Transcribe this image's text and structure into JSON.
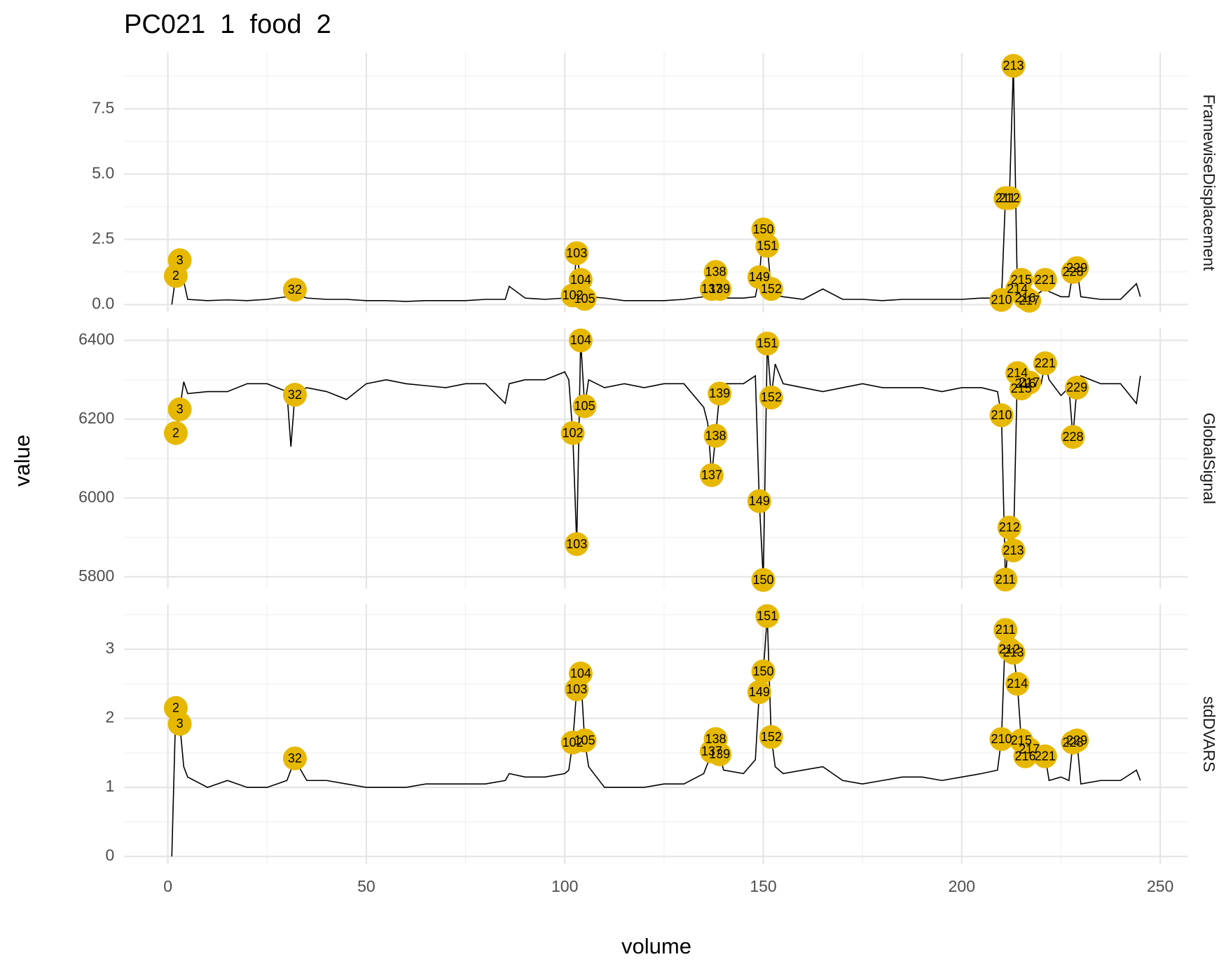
{
  "chart_data": {
    "type": "line",
    "title": "PC021  1  food  2",
    "xlabel": "volume",
    "ylabel": "value",
    "xlim": [
      -11,
      257
    ],
    "xticks": [
      0,
      50,
      100,
      150,
      200,
      250
    ],
    "grid": true,
    "line_color": "#000000",
    "point_color": "#E7B800",
    "x": [
      1,
      2,
      3,
      4,
      5,
      10,
      15,
      20,
      25,
      30,
      31,
      32,
      33,
      35,
      40,
      45,
      50,
      55,
      60,
      65,
      70,
      75,
      80,
      85,
      86,
      90,
      95,
      100,
      101,
      102,
      103,
      104,
      105,
      106,
      110,
      115,
      120,
      125,
      130,
      135,
      136,
      137,
      138,
      139,
      140,
      145,
      148,
      149,
      150,
      151,
      152,
      153,
      155,
      160,
      165,
      170,
      175,
      180,
      185,
      190,
      195,
      200,
      205,
      209,
      210,
      211,
      212,
      213,
      214,
      215,
      216,
      217,
      218,
      220,
      221,
      222,
      225,
      227,
      228,
      229,
      230,
      235,
      240,
      244,
      245
    ],
    "panels": [
      {
        "name": "FramewiseDisplacement",
        "ylim": [
          -0.3,
          9.65
        ],
        "yticks": [
          {
            "value": 0,
            "label": "0.0"
          },
          {
            "value": 2.5,
            "label": "2.5"
          },
          {
            "value": 5,
            "label": "5.0"
          },
          {
            "value": 7.5,
            "label": "7.5"
          }
        ],
        "values": [
          0,
          1.1,
          1.7,
          0.9,
          0.2,
          0.15,
          0.18,
          0.15,
          0.2,
          0.3,
          0.4,
          0.57,
          0.35,
          0.25,
          0.2,
          0.2,
          0.15,
          0.15,
          0.12,
          0.15,
          0.15,
          0.15,
          0.2,
          0.2,
          0.7,
          0.25,
          0.2,
          0.25,
          0.3,
          0.35,
          1.97,
          0.95,
          0.22,
          0.3,
          0.25,
          0.15,
          0.15,
          0.15,
          0.2,
          0.3,
          0.4,
          0.6,
          1.25,
          0.6,
          0.25,
          0.25,
          0.3,
          1.05,
          2.88,
          2.25,
          0.6,
          0.35,
          0.3,
          0.2,
          0.6,
          0.2,
          0.2,
          0.15,
          0.2,
          0.2,
          0.2,
          0.2,
          0.25,
          0.25,
          0.18,
          4.08,
          4.08,
          9.15,
          0.6,
          0.95,
          0.25,
          0.15,
          0.3,
          0.5,
          0.95,
          0.5,
          0.3,
          0.3,
          1.25,
          1.4,
          0.3,
          0.2,
          0.2,
          0.8,
          0.3
        ],
        "outliers": {
          "x": [
            2,
            3,
            32,
            102,
            103,
            104,
            105,
            137,
            138,
            139,
            149,
            150,
            151,
            152,
            210,
            211,
            212,
            213,
            214,
            215,
            216,
            217,
            221,
            228,
            229
          ],
          "values": [
            1.1,
            1.7,
            0.57,
            0.35,
            1.97,
            0.95,
            0.22,
            0.6,
            1.25,
            0.6,
            1.05,
            2.88,
            2.25,
            0.6,
            0.18,
            4.08,
            4.08,
            9.15,
            0.6,
            0.95,
            0.25,
            0.15,
            0.95,
            1.25,
            1.4
          ]
        }
      },
      {
        "name": "GlobalSignal",
        "ylim": [
          5770,
          6431
        ],
        "yticks": [
          5800,
          6000,
          6200,
          6400
        ],
        "values": [
          null,
          6165,
          6225,
          6295,
          6265,
          6270,
          6270,
          6290,
          6290,
          6270,
          6130,
          6262,
          6270,
          6280,
          6270,
          6250,
          6290,
          6300,
          6290,
          6285,
          6280,
          6290,
          6290,
          6240,
          6290,
          6300,
          6300,
          6320,
          6300,
          6165,
          5883,
          6400,
          6233,
          6300,
          6280,
          6290,
          6280,
          6290,
          6290,
          6230,
          6190,
          6058,
          6158,
          6265,
          6290,
          6290,
          6310,
          5992,
          5792,
          6392,
          6255,
          6340,
          6290,
          6280,
          6270,
          6280,
          6290,
          6280,
          6280,
          6280,
          6270,
          6280,
          6280,
          6270,
          6210,
          5793,
          5925,
          5867,
          6317,
          6278,
          6290,
          6293,
          6270,
          6290,
          6342,
          6300,
          6260,
          6280,
          6155,
          6280,
          6310,
          6290,
          6290,
          6240,
          6310
        ],
        "outliers": {
          "x": [
            2,
            3,
            32,
            102,
            103,
            104,
            105,
            137,
            138,
            139,
            149,
            150,
            151,
            152,
            210,
            211,
            212,
            213,
            214,
            215,
            216,
            217,
            221,
            228,
            229
          ],
          "values": [
            6165,
            6225,
            6262,
            6165,
            5883,
            6400,
            6233,
            6058,
            6158,
            6265,
            5992,
            5792,
            6392,
            6255,
            6210,
            5793,
            5925,
            5867,
            6317,
            6278,
            6290,
            6293,
            6342,
            6155,
            6280
          ]
        }
      },
      {
        "name": "stdDVARS",
        "ylim": [
          -0.11,
          3.65
        ],
        "yticks": [
          0,
          1,
          2,
          3
        ],
        "values": [
          0,
          2.15,
          1.92,
          1.3,
          1.15,
          1.0,
          1.1,
          1.0,
          1.0,
          1.1,
          1.25,
          1.42,
          1.3,
          1.1,
          1.1,
          1.05,
          1.0,
          1.0,
          1.0,
          1.05,
          1.05,
          1.05,
          1.05,
          1.1,
          1.2,
          1.15,
          1.15,
          1.2,
          1.25,
          1.65,
          2.42,
          2.65,
          1.68,
          1.3,
          1.0,
          1.0,
          1.0,
          1.05,
          1.05,
          1.2,
          1.35,
          1.52,
          1.7,
          1.48,
          1.25,
          1.2,
          1.4,
          2.38,
          2.68,
          3.48,
          1.73,
          1.3,
          1.2,
          1.25,
          1.3,
          1.1,
          1.05,
          1.1,
          1.15,
          1.15,
          1.1,
          1.15,
          1.2,
          1.25,
          1.7,
          3.28,
          3.0,
          2.95,
          2.5,
          1.68,
          1.45,
          1.55,
          1.45,
          1.3,
          1.45,
          1.1,
          1.15,
          1.1,
          1.65,
          1.68,
          1.05,
          1.1,
          1.1,
          1.25,
          1.1
        ],
        "outliers": {
          "x": [
            2,
            3,
            32,
            102,
            103,
            104,
            105,
            137,
            138,
            139,
            149,
            150,
            151,
            152,
            210,
            211,
            212,
            213,
            214,
            215,
            216,
            217,
            221,
            228,
            229
          ],
          "values": [
            2.15,
            1.92,
            1.42,
            1.65,
            2.42,
            2.65,
            1.68,
            1.52,
            1.7,
            1.48,
            2.38,
            2.68,
            3.48,
            1.73,
            1.7,
            3.28,
            3.0,
            2.95,
            2.5,
            1.68,
            1.45,
            1.55,
            1.45,
            1.65,
            1.68
          ]
        }
      }
    ]
  }
}
